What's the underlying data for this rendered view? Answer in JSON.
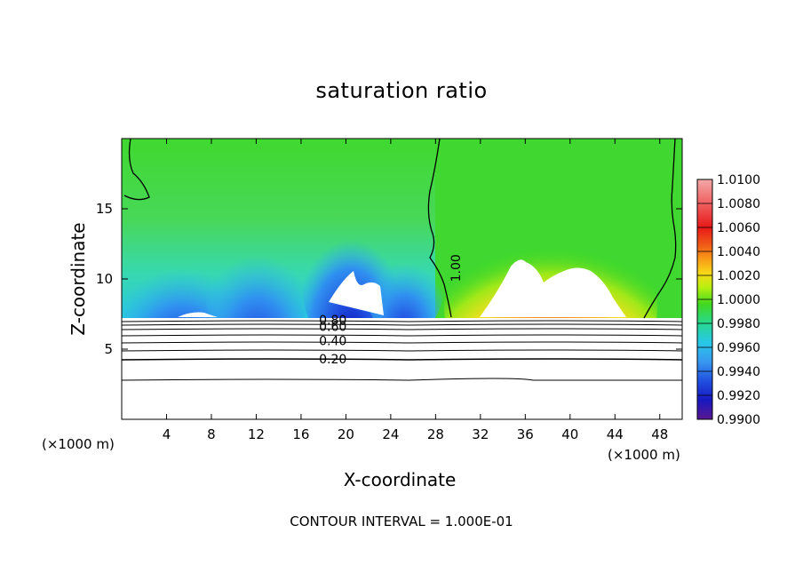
{
  "chart_data": {
    "type": "heatmap",
    "title": "saturation ratio",
    "xlabel": "X-coordinate",
    "ylabel": "Z-coordinate",
    "x_unit_left": "(×1000 m)",
    "x_unit_right": "(×1000 m)",
    "xlim": [
      0,
      50
    ],
    "ylim": [
      0,
      20
    ],
    "x_ticks": [
      4,
      8,
      12,
      16,
      20,
      24,
      28,
      32,
      36,
      40,
      44,
      48
    ],
    "y_ticks": [
      5,
      10,
      15
    ],
    "colorbar": {
      "labels": [
        "1.0100",
        "1.0080",
        "1.0060",
        "1.0040",
        "1.0020",
        "1.0000",
        "0.9980",
        "0.9960",
        "0.9940",
        "0.9920",
        "0.9900"
      ],
      "colors": [
        "#f4a8a8",
        "#f06060",
        "#e81818",
        "#f05818",
        "#f89818",
        "#f8d818",
        "#d8f010",
        "#88e818",
        "#30d820",
        "#28d868",
        "#20d8b8",
        "#28c8e8",
        "#3898f0",
        "#2060e8",
        "#1818c8",
        "#4818a0"
      ]
    },
    "contour_labels": [
      {
        "value": "1.00",
        "x": 29.4,
        "y": 10.8
      },
      {
        "value": "0.80",
        "x": 17.6,
        "y": 7.1
      },
      {
        "value": "0.60",
        "x": 17.6,
        "y": 6.6
      },
      {
        "value": "0.40",
        "x": 17.6,
        "y": 5.6
      },
      {
        "value": "0.20",
        "x": 17.6,
        "y": 4.3
      }
    ],
    "contour_interval_note": "CONTOUR INTERVAL = 1.000E-01"
  }
}
